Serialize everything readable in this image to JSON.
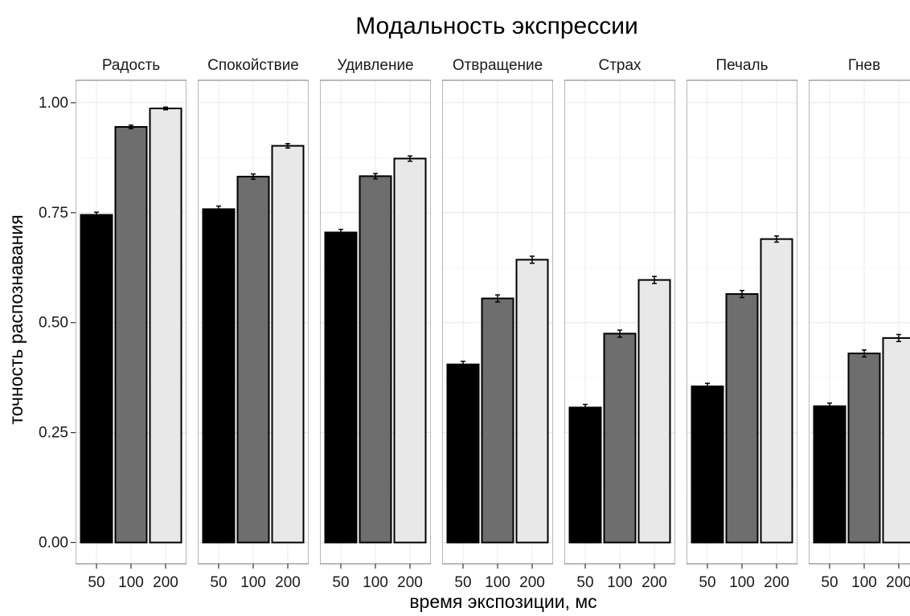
{
  "chart_data": {
    "type": "bar",
    "title": "Модальность экспрессии",
    "xlabel": "время экспозиции, мс",
    "ylabel": "точность распознавания",
    "ylim": [
      0,
      1.0
    ],
    "yticks": [
      "0.00",
      "0.25",
      "0.50",
      "0.75",
      "1.00"
    ],
    "categories": [
      "50",
      "100",
      "200"
    ],
    "grid": true,
    "colors": [
      "#000000",
      "#6e6e6e",
      "#e8e8e8"
    ],
    "panels": [
      {
        "name": "Радость",
        "values": [
          0.745,
          0.945,
          0.987
        ],
        "errors": [
          0.006,
          0.004,
          0.003
        ]
      },
      {
        "name": "Спокойствие",
        "values": [
          0.758,
          0.832,
          0.902
        ],
        "errors": [
          0.007,
          0.006,
          0.005
        ]
      },
      {
        "name": "Удивление",
        "values": [
          0.705,
          0.833,
          0.873
        ],
        "errors": [
          0.007,
          0.006,
          0.006
        ]
      },
      {
        "name": "Отвращение",
        "values": [
          0.405,
          0.555,
          0.643
        ],
        "errors": [
          0.007,
          0.008,
          0.008
        ]
      },
      {
        "name": "Страх",
        "values": [
          0.307,
          0.475,
          0.597
        ],
        "errors": [
          0.007,
          0.008,
          0.008
        ]
      },
      {
        "name": "Печаль",
        "values": [
          0.355,
          0.565,
          0.69
        ],
        "errors": [
          0.007,
          0.008,
          0.007
        ]
      },
      {
        "name": "Гнев",
        "values": [
          0.31,
          0.43,
          0.465
        ],
        "errors": [
          0.007,
          0.008,
          0.008
        ]
      }
    ]
  }
}
